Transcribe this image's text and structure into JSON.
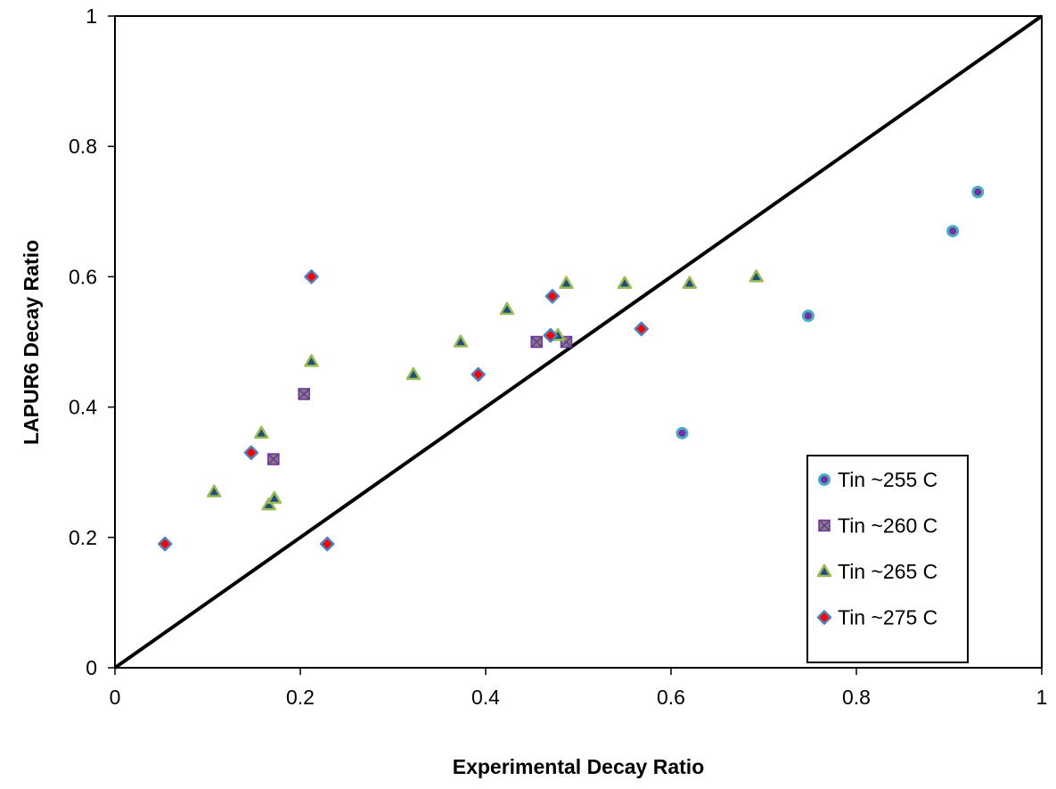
{
  "chart_data": {
    "type": "scatter",
    "title": "",
    "xlabel": "Experimental Decay Ratio",
    "ylabel": "LAPUR6 Decay Ratio",
    "xlim": [
      0,
      1
    ],
    "ylim": [
      0,
      1
    ],
    "x_ticks": [
      "0",
      "0.2",
      "0.4",
      "0.6",
      "0.8",
      "1"
    ],
    "y_ticks": [
      "0",
      "0.2",
      "0.4",
      "0.6",
      "0.8",
      "1"
    ],
    "grid": false,
    "legend_position": "bottom-right",
    "reference_line": {
      "from": [
        0,
        0
      ],
      "to": [
        1,
        1
      ],
      "color": "#000000"
    },
    "series": [
      {
        "name": "Tin ~255 C",
        "marker": "circle",
        "fill": "#7030a0",
        "stroke": "#4bacc6",
        "points": [
          [
            0.612,
            0.36
          ],
          [
            0.748,
            0.54
          ],
          [
            0.904,
            0.67
          ],
          [
            0.931,
            0.73
          ]
        ]
      },
      {
        "name": "Tin ~260 C",
        "marker": "square-x",
        "fill": "#7f7f7f",
        "stroke": "#7030a0",
        "points": [
          [
            0.171,
            0.32
          ],
          [
            0.204,
            0.42
          ],
          [
            0.455,
            0.5
          ],
          [
            0.487,
            0.5
          ]
        ]
      },
      {
        "name": "Tin ~265 C",
        "marker": "triangle",
        "fill": "#1f4e79",
        "stroke": "#9bbb59",
        "points": [
          [
            0.107,
            0.27
          ],
          [
            0.158,
            0.36
          ],
          [
            0.166,
            0.25
          ],
          [
            0.172,
            0.26
          ],
          [
            0.212,
            0.47
          ],
          [
            0.322,
            0.45
          ],
          [
            0.373,
            0.5
          ],
          [
            0.423,
            0.55
          ],
          [
            0.478,
            0.51
          ],
          [
            0.487,
            0.59
          ],
          [
            0.55,
            0.59
          ],
          [
            0.62,
            0.59
          ],
          [
            0.692,
            0.6
          ]
        ]
      },
      {
        "name": "Tin ~275 C",
        "marker": "diamond",
        "fill": "#ff0000",
        "stroke": "#4f81bd",
        "points": [
          [
            0.054,
            0.19
          ],
          [
            0.147,
            0.33
          ],
          [
            0.212,
            0.6
          ],
          [
            0.229,
            0.19
          ],
          [
            0.392,
            0.45
          ],
          [
            0.47,
            0.51
          ],
          [
            0.472,
            0.57
          ],
          [
            0.568,
            0.52
          ]
        ]
      }
    ]
  }
}
